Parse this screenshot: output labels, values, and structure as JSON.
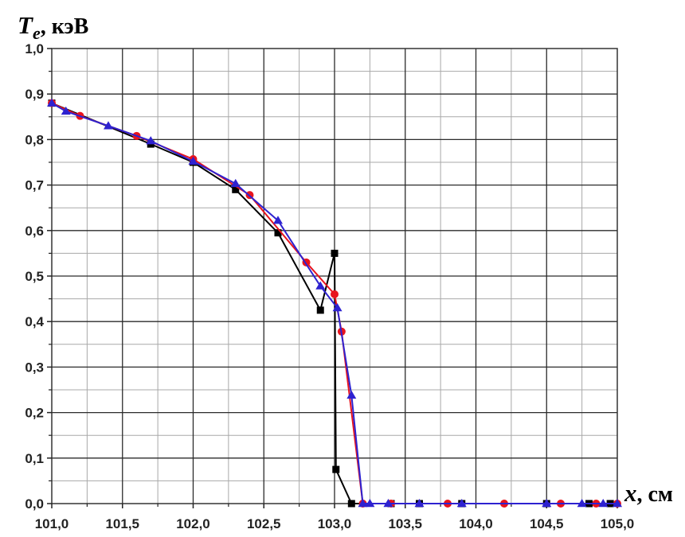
{
  "chart_data": {
    "type": "line",
    "title": "",
    "ylabel_symbol": "T",
    "ylabel_subscript": "e",
    "ylabel_unit": ", кэВ",
    "xlabel_symbol": "x",
    "xlabel_unit": ", см",
    "xlim": [
      101.0,
      105.0
    ],
    "ylim": [
      0.0,
      1.0
    ],
    "grid": true,
    "x_ticks": [
      "101,0",
      "101,5",
      "102,0",
      "102,5",
      "103,0",
      "103,5",
      "104,0",
      "104,5",
      "105,0"
    ],
    "y_ticks": [
      "0,0",
      "0,1",
      "0,2",
      "0,3",
      "0,4",
      "0,5",
      "0,6",
      "0,7",
      "0,8",
      "0,9",
      "1,0"
    ],
    "series": [
      {
        "color": "#000000",
        "marker": "square",
        "x": [
          101.0,
          101.7,
          102.0,
          102.3,
          102.6,
          102.9,
          103.0,
          103.01,
          103.12,
          103.4,
          103.6,
          103.9,
          104.5,
          104.8,
          104.95
        ],
        "y": [
          0.88,
          0.79,
          0.75,
          0.69,
          0.595,
          0.425,
          0.55,
          0.075,
          0.0,
          0.0,
          0.0,
          0.0,
          0.0,
          0.0,
          0.0
        ]
      },
      {
        "color": "#e8141e",
        "marker": "circle",
        "x": [
          101.0,
          101.2,
          101.6,
          102.0,
          102.4,
          102.8,
          103.0,
          103.05,
          103.2,
          103.4,
          103.8,
          104.2,
          104.6,
          104.85,
          105.0
        ],
        "y": [
          0.88,
          0.852,
          0.808,
          0.757,
          0.678,
          0.53,
          0.46,
          0.378,
          0.0,
          0.0,
          0.0,
          0.0,
          0.0,
          0.0,
          0.0
        ]
      },
      {
        "color": "#2e22d0",
        "marker": "triangle",
        "x": [
          101.0,
          101.1,
          101.4,
          101.7,
          102.0,
          102.3,
          102.6,
          102.9,
          103.02,
          103.12,
          103.2,
          103.25,
          103.38,
          103.6,
          103.9,
          104.5,
          104.75,
          104.9,
          105.0
        ],
        "y": [
          0.88,
          0.862,
          0.83,
          0.797,
          0.752,
          0.703,
          0.622,
          0.478,
          0.43,
          0.238,
          0.0,
          0.0,
          0.0,
          0.0,
          0.0,
          0.0,
          0.0,
          0.0,
          0.0
        ]
      }
    ]
  }
}
